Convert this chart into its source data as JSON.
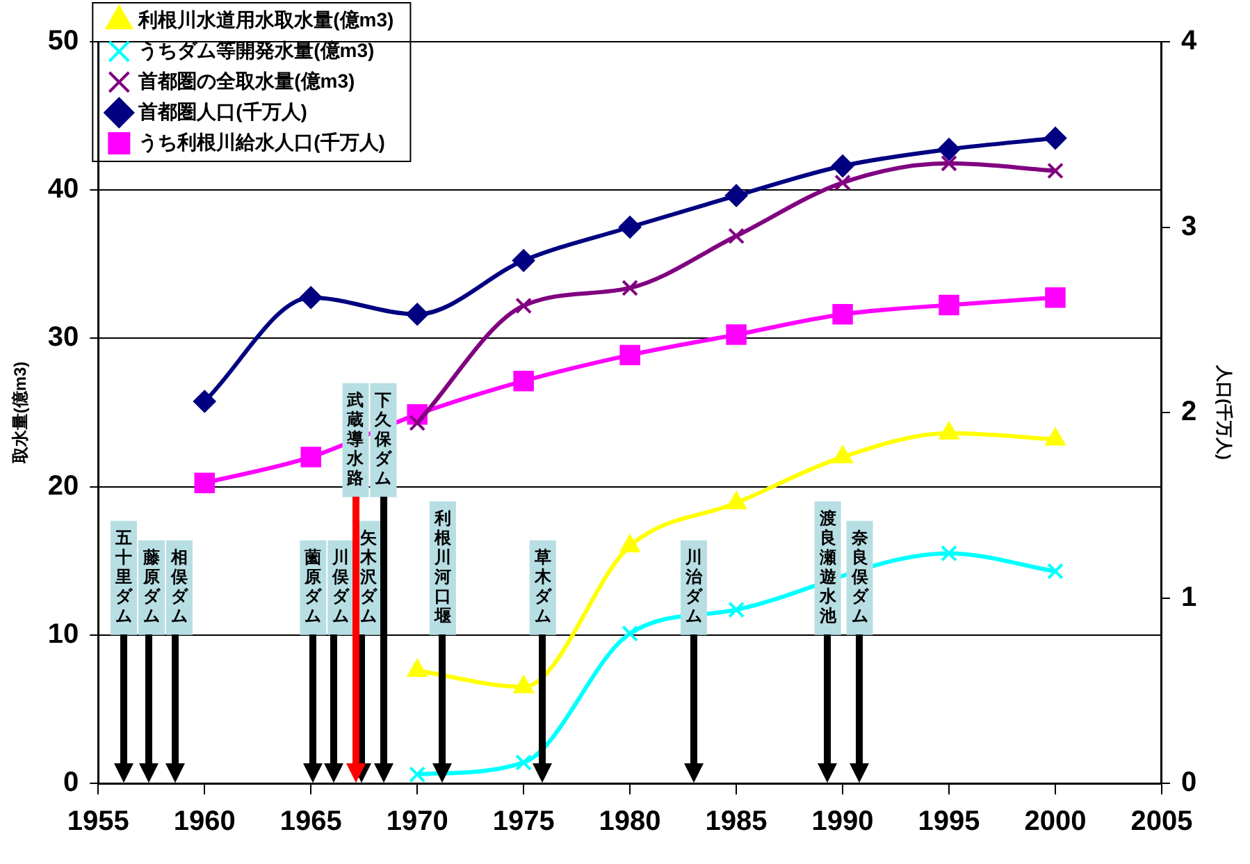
{
  "chart_data": {
    "type": "line",
    "ylabel": "取水量(億m3)",
    "y2label": "人口(千万人)",
    "x": [
      1960,
      1965,
      1970,
      1975,
      1980,
      1985,
      1990,
      1995,
      2000
    ],
    "series": [
      {
        "name": "利根川水道用水取水量(億m3)",
        "color": "#ffff00",
        "marker": "triangle",
        "values": [
          null,
          null,
          7.6,
          6.5,
          16.0,
          18.9,
          22.0,
          23.6,
          23.2
        ]
      },
      {
        "name": "うちダム等開発水量(億m3)",
        "color": "#00ffff",
        "marker": "cross",
        "values": [
          null,
          null,
          0.6,
          1.4,
          10.1,
          11.7,
          null,
          15.5,
          14.3
        ]
      },
      {
        "name": "首都圏の全取水量(億m3)",
        "color": "#800080",
        "marker": "cross",
        "values": [
          null,
          null,
          24.3,
          32.2,
          33.4,
          36.9,
          40.5,
          41.8,
          41.3
        ]
      },
      {
        "name": "首都圏人口(千万人)",
        "color": "#000080",
        "marker": "diamond",
        "axis": "y2",
        "values": [
          2.06,
          2.62,
          2.53,
          2.82,
          3.0,
          3.17,
          3.33,
          3.42,
          3.48
        ]
      },
      {
        "name": "うち利根川給水人口(千万人)",
        "color": "#ff00ff",
        "marker": "square",
        "axis": "y2",
        "values": [
          1.62,
          1.76,
          1.99,
          2.17,
          2.31,
          2.42,
          2.53,
          2.58,
          2.62
        ]
      }
    ],
    "xlim": [
      1955,
      2005
    ],
    "xticks": [
      1955,
      1960,
      1965,
      1970,
      1975,
      1980,
      1985,
      1990,
      1995,
      2000,
      2005
    ],
    "ylim": [
      0,
      50
    ],
    "yticks": [
      0,
      10,
      20,
      30,
      40,
      50
    ],
    "y2lim": [
      0,
      4
    ],
    "y2ticks": [
      0,
      1,
      2,
      3,
      4
    ],
    "ref_lines": [
      {
        "axis": "x",
        "value": 1956.2,
        "label": "五十里ダム",
        "color": "#000000"
      },
      {
        "axis": "x",
        "value": 1957.4,
        "label": "藤原ダム",
        "color": "#000000"
      },
      {
        "axis": "x",
        "value": 1958.6,
        "label": "相俣ダム",
        "color": "#000000"
      },
      {
        "axis": "x",
        "value": 1965.1,
        "label": "薗原ダム",
        "color": "#000000"
      },
      {
        "axis": "x",
        "value": 1966.1,
        "label": "川俣ダム",
        "color": "#000000"
      },
      {
        "axis": "x",
        "value": 1967.1,
        "label": "武蔵導水路",
        "color": "#ff0000"
      },
      {
        "axis": "x",
        "value": 1967.4,
        "label": "矢木沢ダム",
        "color": "#000000"
      },
      {
        "axis": "x",
        "value": 1968.4,
        "label": "下久保ダム",
        "color": "#000000"
      },
      {
        "axis": "x",
        "value": 1971.2,
        "label": "利根川河口堰",
        "color": "#000000"
      },
      {
        "axis": "x",
        "value": 1975.9,
        "label": "草木ダム",
        "color": "#000000"
      },
      {
        "axis": "x",
        "value": 1983.0,
        "label": "川治ダム",
        "color": "#000000"
      },
      {
        "axis": "x",
        "value": 1989.3,
        "label": "渡良瀬遊水池",
        "color": "#000000"
      },
      {
        "axis": "x",
        "value": 1990.8,
        "label": "奈良俣ダム",
        "color": "#000000"
      }
    ],
    "grid": "y",
    "legend": "top left",
    "line_style": "solid"
  }
}
